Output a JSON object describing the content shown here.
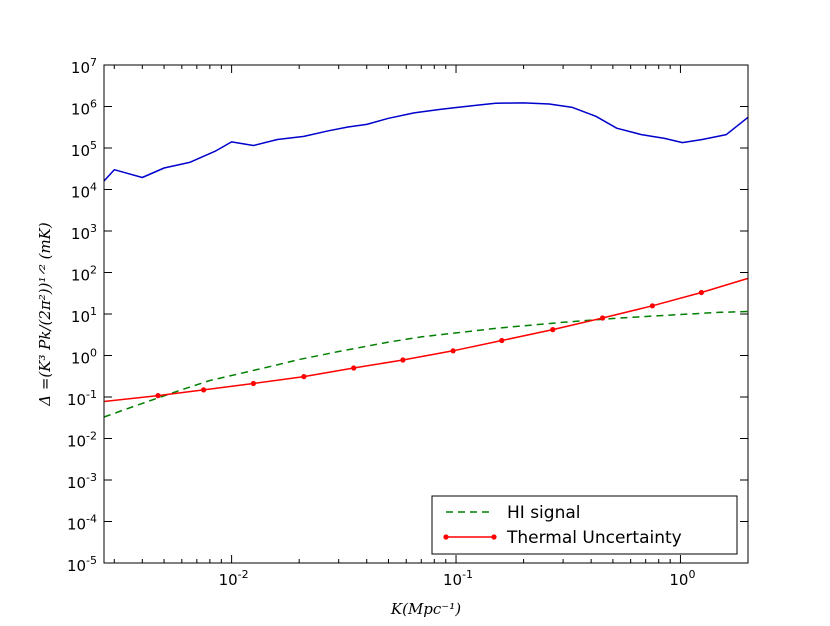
{
  "chart_data": {
    "type": "line",
    "xscale": "log",
    "yscale": "log",
    "xlim": [
      0.0027,
      2.0
    ],
    "ylim": [
      1e-05,
      10000000
    ],
    "xlabel": "K(Mpc⁻¹)",
    "ylabel": "Δ =(K³ Pk/(2π²))¹ᐟ² (mK)",
    "x_ticks": [
      {
        "value": 0.01,
        "base": "10",
        "exp": "-2"
      },
      {
        "value": 0.1,
        "base": "10",
        "exp": "-1"
      },
      {
        "value": 1,
        "base": "10",
        "exp": "0"
      }
    ],
    "y_ticks": [
      {
        "value": 1e-05,
        "base": "10",
        "exp": "-5"
      },
      {
        "value": 0.0001,
        "base": "10",
        "exp": "-4"
      },
      {
        "value": 0.001,
        "base": "10",
        "exp": "-3"
      },
      {
        "value": 0.01,
        "base": "10",
        "exp": "-2"
      },
      {
        "value": 0.1,
        "base": "10",
        "exp": "-1"
      },
      {
        "value": 1,
        "base": "10",
        "exp": "0"
      },
      {
        "value": 10,
        "base": "10",
        "exp": "1"
      },
      {
        "value": 100,
        "base": "10",
        "exp": "2"
      },
      {
        "value": 1000,
        "base": "10",
        "exp": "3"
      },
      {
        "value": 10000,
        "base": "10",
        "exp": "4"
      },
      {
        "value": 100000,
        "base": "10",
        "exp": "5"
      },
      {
        "value": 1000000,
        "base": "10",
        "exp": "6"
      },
      {
        "value": 10000000,
        "base": "10",
        "exp": "7"
      }
    ],
    "legend_position": "lower-right",
    "series": [
      {
        "name": "",
        "color": "#0000cc",
        "style": "solid",
        "markers": false,
        "legend": false,
        "x": [
          0.0027,
          0.003,
          0.004,
          0.005,
          0.0065,
          0.0085,
          0.01,
          0.0125,
          0.016,
          0.021,
          0.027,
          0.033,
          0.04,
          0.05,
          0.065,
          0.085,
          0.105,
          0.125,
          0.15,
          0.2,
          0.26,
          0.33,
          0.42,
          0.52,
          0.67,
          0.85,
          1.02,
          1.25,
          1.6,
          2.0
        ],
        "y": [
          16000,
          30000,
          19500,
          33000,
          45000,
          85000,
          140000,
          115000,
          160000,
          190000,
          260000,
          320000,
          370000,
          520000,
          700000,
          850000,
          970000,
          1080000,
          1200000,
          1220000,
          1150000,
          950000,
          580000,
          300000,
          210000,
          170000,
          135000,
          160000,
          210000,
          550000
        ]
      },
      {
        "name": "HI signal",
        "color": "#007f00",
        "style": "dashed",
        "markers": false,
        "legend": true,
        "x": [
          0.0027,
          0.004,
          0.006,
          0.008,
          0.01,
          0.015,
          0.02,
          0.03,
          0.05,
          0.07,
          0.1,
          0.15,
          0.2,
          0.3,
          0.5,
          0.7,
          1.0,
          1.5,
          2.0
        ],
        "y": [
          0.033,
          0.07,
          0.15,
          0.25,
          0.33,
          0.55,
          0.8,
          1.25,
          2.1,
          2.8,
          3.5,
          4.5,
          5.2,
          6.3,
          7.8,
          8.7,
          9.7,
          11,
          11.5
        ]
      },
      {
        "name": "Thermal Uncertainty",
        "color": "#ff0000",
        "style": "solid",
        "markers": true,
        "legend": true,
        "x": [
          0.0027,
          0.0047,
          0.0075,
          0.0125,
          0.021,
          0.035,
          0.058,
          0.097,
          0.16,
          0.27,
          0.45,
          0.75,
          1.24,
          2.0
        ],
        "y": [
          0.078,
          0.108,
          0.148,
          0.212,
          0.31,
          0.5,
          0.78,
          1.3,
          2.3,
          4.2,
          8.0,
          15.8,
          33,
          72
        ]
      }
    ]
  }
}
